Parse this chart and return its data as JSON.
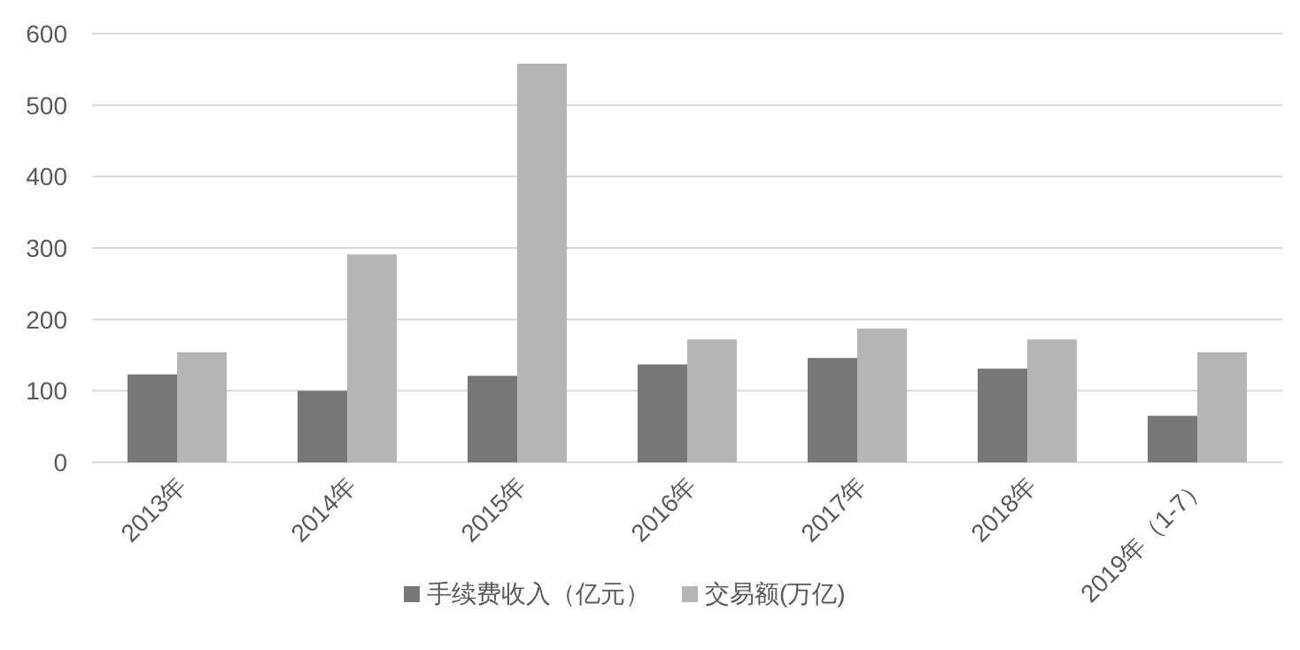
{
  "chart_data": {
    "type": "bar",
    "categories": [
      "2013年",
      "2014年",
      "2015年",
      "2016年",
      "2017年",
      "2018年",
      "2019年（1-7）"
    ],
    "series": [
      {
        "name": "手续费收入（亿元）",
        "color": "#767676",
        "values": [
          123,
          100,
          121,
          137,
          146,
          131,
          65
        ]
      },
      {
        "name": "交易额(万亿)",
        "color": "#b4b4b4",
        "values": [
          154,
          291,
          558,
          172,
          187,
          172,
          154
        ]
      }
    ],
    "ylim": [
      0,
      600
    ],
    "yticks": [
      0,
      100,
      200,
      300,
      400,
      500,
      600
    ],
    "grid": "y",
    "legend": "bottom"
  }
}
